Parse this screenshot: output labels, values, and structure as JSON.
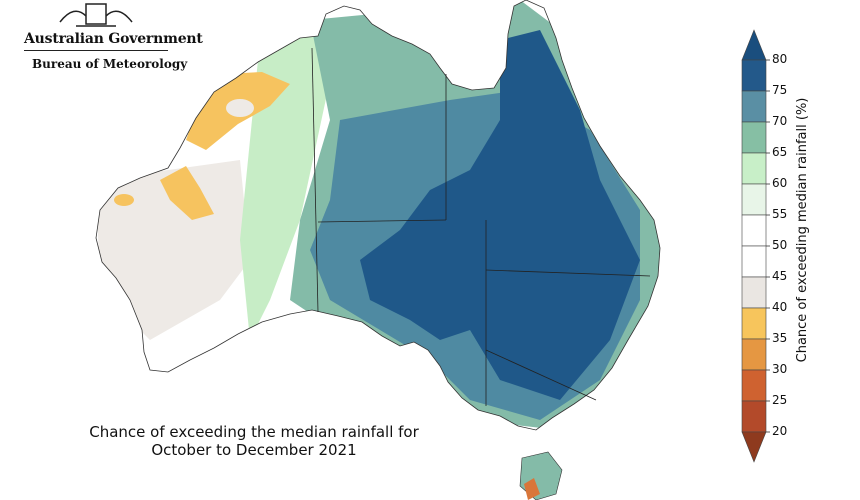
{
  "logo": {
    "government": "Australian Government",
    "bureau": "Bureau of Meteorology",
    "crest": "commonwealth-coat-of-arms"
  },
  "caption": {
    "line1": "Chance of exceeding the median rainfall for",
    "line2": "October to December 2021"
  },
  "legend": {
    "title": "Chance of exceeding median rainfall (%)",
    "ticks": [
      "80",
      "75",
      "70",
      "65",
      "60",
      "55",
      "50",
      "45",
      "40",
      "35",
      "30",
      "25",
      "20"
    ],
    "bands": [
      {
        "range": "above 80",
        "color": "#1a4e7e"
      },
      {
        "range": "75-80",
        "color": "#23598a"
      },
      {
        "range": "70-75",
        "color": "#5a8fa4"
      },
      {
        "range": "65-70",
        "color": "#86bfa4"
      },
      {
        "range": "60-65",
        "color": "#c8efc8"
      },
      {
        "range": "55-60",
        "color": "#e8f5e8"
      },
      {
        "range": "50-55",
        "color": "#ffffff"
      },
      {
        "range": "45-50",
        "color": "#ffffff"
      },
      {
        "range": "40-45",
        "color": "#eae6e2"
      },
      {
        "range": "35-40",
        "color": "#f7c55c"
      },
      {
        "range": "30-35",
        "color": "#e59742"
      },
      {
        "range": "25-30",
        "color": "#cf6230"
      },
      {
        "range": "20-25",
        "color": "#b34a2a"
      },
      {
        "range": "below 20",
        "color": "#8e3a1e"
      }
    ]
  },
  "colors": {
    "very_high": "#1f5889",
    "high": "#4f8aa2",
    "mid_high": "#84bba8",
    "low_high": "#c7edc6",
    "neutral": "#eeeae6",
    "warm": "#f6c35f",
    "orange": "#d9763a"
  }
}
